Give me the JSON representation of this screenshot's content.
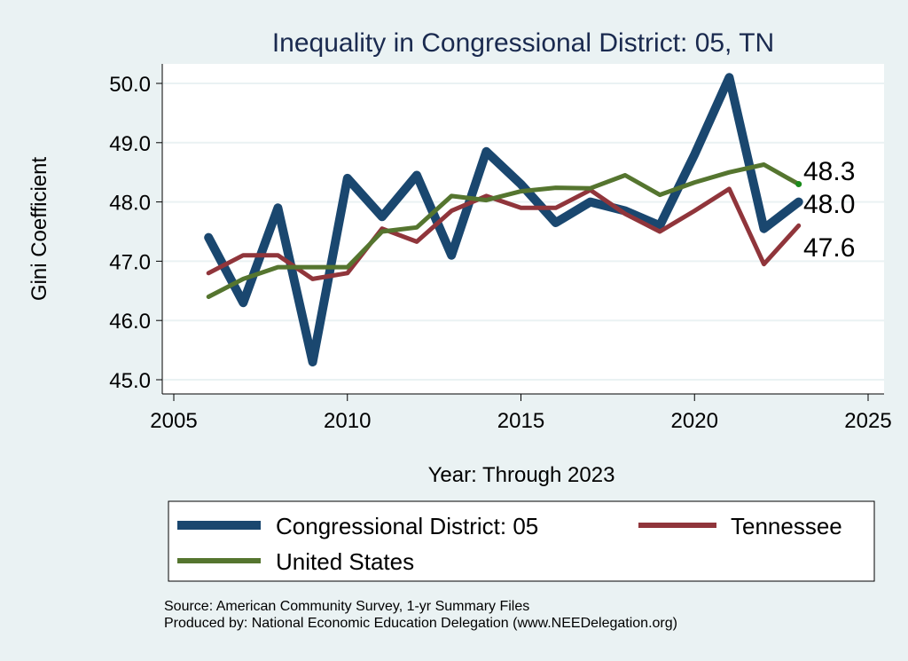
{
  "chart_data": {
    "type": "line",
    "title": "Inequality in Congressional District:  05, TN",
    "xlabel": "Year: Through 2023",
    "ylabel": "Gini Coefficient",
    "xlim": [
      2005,
      2025
    ],
    "ylim": [
      45.0,
      50.0
    ],
    "x_ticks": [
      2005,
      2010,
      2015,
      2020,
      2025
    ],
    "x_tick_labels": [
      "2005",
      "2010",
      "2015",
      "2020",
      "2025"
    ],
    "y_ticks": [
      45,
      46,
      47,
      48,
      49,
      50
    ],
    "y_tick_labels": [
      "45.0",
      "46.0",
      "47.0",
      "48.0",
      "49.0",
      "50.0"
    ],
    "grid": true,
    "x": [
      2006,
      2007,
      2008,
      2009,
      2010,
      2011,
      2012,
      2013,
      2014,
      2015,
      2016,
      2017,
      2018,
      2019,
      2020,
      2021,
      2022,
      2023
    ],
    "series": [
      {
        "name": "Congressional District:  05",
        "color": "#1a476f",
        "values": [
          47.4,
          46.3,
          47.9,
          45.3,
          48.4,
          47.75,
          48.45,
          47.1,
          48.85,
          48.3,
          47.65,
          48.0,
          47.85,
          47.6,
          48.8,
          50.1,
          47.55,
          48.0
        ],
        "end_label": "48.0"
      },
      {
        "name": "Tennessee",
        "color": "#90353b",
        "values": [
          46.8,
          47.1,
          47.1,
          46.7,
          46.8,
          47.55,
          47.33,
          47.85,
          48.1,
          47.9,
          47.9,
          48.2,
          47.8,
          47.5,
          47.85,
          48.22,
          46.95,
          47.6
        ],
        "end_label": "47.6"
      },
      {
        "name": "United States",
        "color": "#55752f",
        "values": [
          46.4,
          46.7,
          46.9,
          46.9,
          46.9,
          47.5,
          47.57,
          48.1,
          48.03,
          48.18,
          48.24,
          48.23,
          48.45,
          48.12,
          48.33,
          48.5,
          48.63,
          48.3
        ],
        "end_label": "48.3"
      }
    ],
    "legend_position": "bottom",
    "source_lines": [
      "Source: American Community Survey, 1-yr Summary Files",
      "Produced by: National Economic Education Delegation (www.NEEDelegation.org)"
    ]
  }
}
